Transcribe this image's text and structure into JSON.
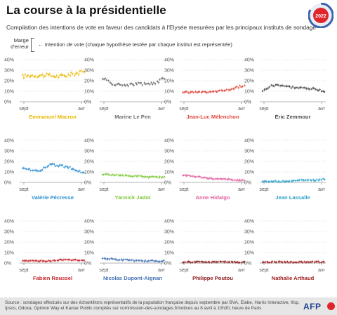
{
  "header": {
    "title": "La course à la présidentielle",
    "subtitle": "Compilation des intentions de vote en faveur des candidats à l'Elysée mesurées par les principaux instituts de sondage",
    "badge": "2022"
  },
  "legend": {
    "margin": "Marge d'erreur",
    "intention": "← Intention de vote (chaque hypothèse testée par chaque institut est représentée)"
  },
  "footer": {
    "source": "Source : sondages effectués sur des échantillons représentatifs de la population française depuis septembre par BVA, Elabe, Harris Interactive, Ifop, Ipsos, Odoxa, Opinion Way et Kantar Public compilés sur commission-des-sondages.fr/notices au 8 avril à 10h30, heure de Paris",
    "logo": "AFP"
  },
  "chart_data": [
    {
      "type": "scatter",
      "title": "Emmanuel Macron",
      "color": "#e8b800",
      "x_start": "sept",
      "x_end": "avr",
      "ylim": [
        0,
        40
      ],
      "yticks": [
        "0%",
        "10%",
        "20%",
        "30%",
        "40%"
      ],
      "x": [
        0,
        1,
        2,
        3,
        4,
        5,
        6,
        7
      ],
      "values": [
        24,
        25,
        25,
        25,
        24,
        25,
        27,
        28
      ]
    },
    {
      "type": "scatter",
      "title": "Marine Le Pen",
      "color": "#6f6f6f",
      "x_start": "sept",
      "x_end": "avr",
      "ylim": [
        0,
        40
      ],
      "yticks": [
        "0%",
        "10%",
        "20%",
        "30%",
        "40%"
      ],
      "x": [
        0,
        1,
        2,
        3,
        4,
        5,
        6,
        7
      ],
      "values": [
        23,
        17,
        16,
        16,
        17,
        17,
        18,
        22
      ]
    },
    {
      "type": "scatter",
      "title": "Jean-Luc Mélenchon",
      "color": "#e0473c",
      "x_start": "sept",
      "x_end": "avr",
      "ylim": [
        0,
        40
      ],
      "yticks": [
        "0%",
        "10%",
        "20%",
        "30%",
        "40%"
      ],
      "x": [
        0,
        1,
        2,
        3,
        4,
        5,
        6,
        7
      ],
      "values": [
        9,
        9,
        9,
        9,
        10,
        11,
        13,
        16
      ]
    },
    {
      "type": "scatter",
      "title": "Éric Zemmour",
      "color": "#4a4a4a",
      "x_start": "sept",
      "x_end": "avr",
      "ylim": [
        0,
        40
      ],
      "yticks": [
        "0%",
        "10%",
        "20%",
        "30%",
        "40%"
      ],
      "x": [
        0,
        1,
        2,
        3,
        4,
        5,
        6,
        7
      ],
      "values": [
        10,
        15,
        16,
        14,
        13,
        13,
        12,
        10
      ]
    },
    {
      "type": "scatter",
      "title": "Valérie Pécresse",
      "color": "#2a8fd0",
      "x_start": "sept",
      "x_end": "avr",
      "ylim": [
        0,
        40
      ],
      "yticks": [
        "0%",
        "10%",
        "20%",
        "30%",
        "40%"
      ],
      "x": [
        0,
        1,
        2,
        3,
        4,
        5,
        6,
        7
      ],
      "values": [
        13,
        12,
        11,
        17,
        16,
        15,
        12,
        9
      ]
    },
    {
      "type": "scatter",
      "title": "Yannick Jadot",
      "color": "#7fc93b",
      "x_start": "sept",
      "x_end": "avr",
      "ylim": [
        0,
        40
      ],
      "yticks": [
        "0%",
        "10%",
        "20%",
        "30%",
        "40%"
      ],
      "x": [
        0,
        1,
        2,
        3,
        4,
        5,
        6,
        7
      ],
      "values": [
        8,
        7,
        7,
        6,
        6,
        5,
        5,
        5
      ]
    },
    {
      "type": "scatter",
      "title": "Anne Hidalgo",
      "color": "#e0609e",
      "x_start": "sept",
      "x_end": "avr",
      "ylim": [
        0,
        40
      ],
      "yticks": [
        "0%",
        "10%",
        "20%",
        "30%",
        "40%"
      ],
      "x": [
        0,
        1,
        2,
        3,
        4,
        5,
        6,
        7
      ],
      "values": [
        7,
        6,
        5,
        4,
        3,
        3,
        2,
        2
      ]
    },
    {
      "type": "scatter",
      "title": "Jean Lassalle",
      "color": "#2aa3c9",
      "x_start": "sept",
      "x_end": "avr",
      "ylim": [
        0,
        40
      ],
      "yticks": [
        "0%",
        "10%",
        "20%",
        "30%",
        "40%"
      ],
      "x": [
        0,
        1,
        2,
        3,
        4,
        5,
        6,
        7
      ],
      "values": [
        1,
        1,
        1,
        1,
        2,
        2,
        2,
        3
      ]
    },
    {
      "type": "scatter",
      "title": "Fabien Roussel",
      "color": "#c8262b",
      "x_start": "sept",
      "x_end": "avr",
      "ylim": [
        0,
        40
      ],
      "yticks": [
        "0%",
        "10%",
        "20%",
        "30%",
        "40%"
      ],
      "x": [
        0,
        1,
        2,
        3,
        4,
        5,
        6,
        7
      ],
      "values": [
        2,
        2,
        2,
        2,
        3,
        3,
        3,
        3
      ]
    },
    {
      "type": "scatter",
      "title": "Nicolas Dupont-Aignan",
      "color": "#4573b5",
      "x_start": "sept",
      "x_end": "avr",
      "ylim": [
        0,
        40
      ],
      "yticks": [
        "0%",
        "10%",
        "20%",
        "30%",
        "40%"
      ],
      "x": [
        0,
        1,
        2,
        3,
        4,
        5,
        6,
        7
      ],
      "values": [
        4,
        4,
        3,
        3,
        2,
        2,
        2,
        2
      ]
    },
    {
      "type": "scatter",
      "title": "Philippe Poutou",
      "color": "#8c1a1a",
      "x_start": "sept",
      "x_end": "avr",
      "ylim": [
        0,
        40
      ],
      "yticks": [
        "0%",
        "10%",
        "20%",
        "30%",
        "40%"
      ],
      "x": [
        0,
        1,
        2,
        3,
        4,
        5,
        6,
        7
      ],
      "values": [
        1,
        1,
        1,
        1,
        1,
        1,
        1,
        1
      ]
    },
    {
      "type": "scatter",
      "title": "Nathalie Arthaud",
      "color": "#a12020",
      "x_start": "sept",
      "x_end": "avr",
      "ylim": [
        0,
        40
      ],
      "yticks": [
        "0%",
        "10%",
        "20%",
        "30%",
        "40%"
      ],
      "x": [
        0,
        1,
        2,
        3,
        4,
        5,
        6,
        7
      ],
      "values": [
        1,
        1,
        1,
        1,
        1,
        1,
        1,
        1
      ]
    }
  ]
}
